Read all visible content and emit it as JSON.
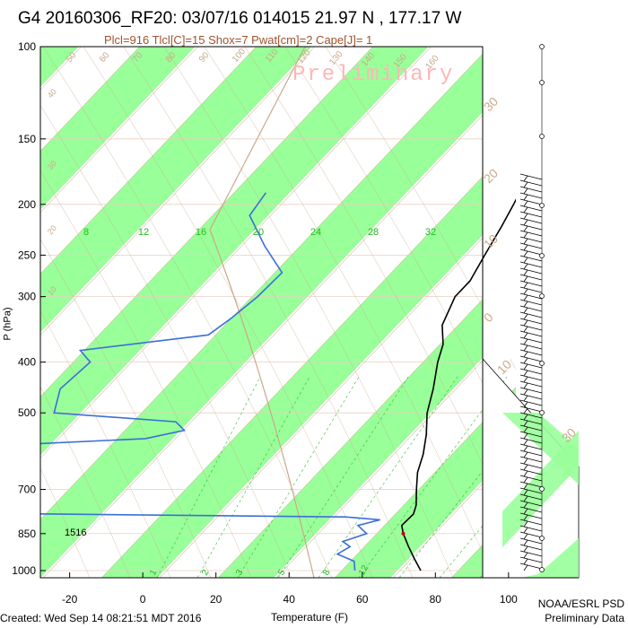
{
  "header": {
    "title": "G4 20160306_RF20: 03/07/16 014015  21.97 N , 177.17 W",
    "subtitle": "Plcl=916 Tlcl[C]=15 Shox=7 Pwat[cm]=2 Cape[J]= 1",
    "watermark": "Preliminary"
  },
  "footer": {
    "created": "Created: Wed Sep 14 08:21:51 MDT 2016",
    "credit_line1": "NOAA/ESRL PSD",
    "credit_line2": "Preliminary Data"
  },
  "colors": {
    "temperature": "#000000",
    "dewpoint": "#3a6fd8",
    "green_band": "#99ff99",
    "isotherm": "#c9a98a",
    "mixing_ratio": "#22bb22",
    "parcel": "#cc0000"
  },
  "chart_data": {
    "type": "skew-t",
    "xlabel": "Temperature (F)",
    "ylabel": "P (hPa)",
    "x_ticks": [
      -20,
      0,
      20,
      40,
      60,
      80,
      100
    ],
    "xlim": [
      -28,
      102
    ],
    "y_ticks": [
      100,
      150,
      200,
      250,
      300,
      400,
      500,
      700,
      850,
      1000
    ],
    "ylim": [
      1050,
      100
    ],
    "y_scale": "log",
    "isotherm_labels_f": [
      50,
      60,
      70,
      80,
      90,
      100,
      110,
      120,
      130,
      140,
      150,
      160
    ],
    "isotherm_labels_f_secondary": [
      40,
      30,
      20,
      10
    ],
    "mixing_ratio_labels_top": [
      "8",
      "12",
      "16",
      "20",
      "24",
      "28",
      "32"
    ],
    "mixing_ratio_labels_bottom": [
      "1",
      "2",
      "3",
      "5",
      "8",
      "12"
    ],
    "celsius_labels_right": [
      "30",
      "20",
      "10",
      "0",
      "10",
      "30"
    ],
    "level_annotation": "1516",
    "temperature_profile": {
      "name": "Temperature",
      "points": [
        {
          "p": 170,
          "t": 28
        },
        {
          "p": 185,
          "t": 29
        },
        {
          "p": 200,
          "t": 30
        },
        {
          "p": 220,
          "t": 31
        },
        {
          "p": 250,
          "t": 32
        },
        {
          "p": 280,
          "t": 33
        },
        {
          "p": 300,
          "t": 32
        },
        {
          "p": 340,
          "t": 34
        },
        {
          "p": 370,
          "t": 38
        },
        {
          "p": 400,
          "t": 40
        },
        {
          "p": 450,
          "t": 44
        },
        {
          "p": 500,
          "t": 47
        },
        {
          "p": 550,
          "t": 51
        },
        {
          "p": 600,
          "t": 54
        },
        {
          "p": 650,
          "t": 56
        },
        {
          "p": 700,
          "t": 59
        },
        {
          "p": 750,
          "t": 62
        },
        {
          "p": 780,
          "t": 63
        },
        {
          "p": 820,
          "t": 62
        },
        {
          "p": 850,
          "t": 64
        },
        {
          "p": 900,
          "t": 68
        },
        {
          "p": 950,
          "t": 72
        },
        {
          "p": 1000,
          "t": 76
        }
      ]
    },
    "dewpoint_profile": {
      "name": "Dewpoint",
      "points": [
        {
          "p": 190,
          "t": -40
        },
        {
          "p": 210,
          "t": -40
        },
        {
          "p": 240,
          "t": -30
        },
        {
          "p": 270,
          "t": -20
        },
        {
          "p": 300,
          "t": -22
        },
        {
          "p": 330,
          "t": -25
        },
        {
          "p": 355,
          "t": -28
        },
        {
          "p": 380,
          "t": -60
        },
        {
          "p": 400,
          "t": -55
        },
        {
          "p": 450,
          "t": -58
        },
        {
          "p": 500,
          "t": -55
        },
        {
          "p": 520,
          "t": -20
        },
        {
          "p": 540,
          "t": -16
        },
        {
          "p": 560,
          "t": -25
        },
        {
          "p": 580,
          "t": -70
        },
        {
          "p": 650,
          "t": -70
        },
        {
          "p": 775,
          "t": -75
        },
        {
          "p": 790,
          "t": 45
        },
        {
          "p": 800,
          "t": 55
        },
        {
          "p": 820,
          "t": 50
        },
        {
          "p": 850,
          "t": 54
        },
        {
          "p": 880,
          "t": 49
        },
        {
          "p": 900,
          "t": 52
        },
        {
          "p": 930,
          "t": 50
        },
        {
          "p": 960,
          "t": 56
        },
        {
          "p": 1000,
          "t": 58
        }
      ]
    }
  }
}
